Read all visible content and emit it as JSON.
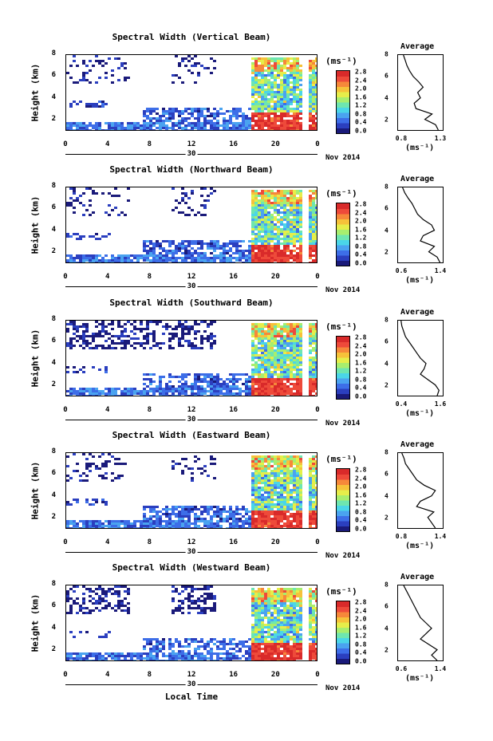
{
  "shared": {
    "height_label": "Height (km)",
    "y_ticks": [
      "2",
      "4",
      "6",
      "8"
    ],
    "x_ticks": [
      "0",
      "4",
      "8",
      "12",
      "16",
      "20",
      "0"
    ],
    "day_label": "30",
    "month_label": "Nov 2014",
    "colorbar_unit": "(ms⁻¹)",
    "colorbar_ticks": [
      "2.8",
      "2.4",
      "2.0",
      "1.6",
      "1.2",
      "0.8",
      "0.4",
      "0.0"
    ],
    "avg_title": "Average",
    "avg_unit": "(ms⁻¹)",
    "avg_y_ticks": [
      "2",
      "4",
      "6",
      "8"
    ],
    "x_axis_label": "Local Time",
    "colormap": [
      "#1a1a7a",
      "#2b3fbf",
      "#3d6ee8",
      "#4aa3f0",
      "#4ad6e8",
      "#6ee6b0",
      "#a8ee6e",
      "#e6ee4a",
      "#f6c23a",
      "#f6883a",
      "#ee4a3a",
      "#d92a2a"
    ]
  },
  "chart_data": [
    {
      "type": "heatmap",
      "title": "Spectral Width (Vertical Beam)",
      "xlabel": "Local Time",
      "ylabel": "Height (km)",
      "xlim": [
        0,
        24
      ],
      "ylim": [
        1,
        8
      ],
      "zlim": [
        0.0,
        2.8
      ],
      "colorbar_ticks": [
        2.8,
        2.4,
        2.0,
        1.6,
        1.2,
        0.8,
        0.4,
        0.0
      ],
      "average_profile": {
        "title": "Average",
        "xlim": [
          0.8,
          1.3
        ],
        "x_ticks": [
          "0.8",
          "1.3"
        ],
        "heights": [
          1.0,
          1.5,
          2.0,
          2.5,
          3.0,
          3.5,
          4.0,
          4.5,
          5.0,
          5.5,
          6.0,
          6.5,
          7.0,
          7.5,
          8.0
        ],
        "values": [
          1.25,
          1.22,
          1.1,
          1.18,
          1.0,
          0.98,
          1.05,
          1.02,
          1.08,
          1.03,
          0.97,
          0.93,
          0.9,
          0.88,
          0.86
        ]
      }
    },
    {
      "type": "heatmap",
      "title": "Spectral Width (Northward Beam)",
      "xlabel": "Local Time",
      "ylabel": "Height (km)",
      "xlim": [
        0,
        24
      ],
      "ylim": [
        1,
        8
      ],
      "zlim": [
        0.0,
        2.8
      ],
      "colorbar_ticks": [
        2.8,
        2.4,
        2.0,
        1.6,
        1.2,
        0.8,
        0.4,
        0.0
      ],
      "average_profile": {
        "title": "Average",
        "xlim": [
          0.6,
          1.4
        ],
        "x_ticks": [
          "0.6",
          "1.4"
        ],
        "heights": [
          1.0,
          1.5,
          2.0,
          2.5,
          3.0,
          3.5,
          4.0,
          4.5,
          5.0,
          5.5,
          6.0,
          6.5,
          7.0,
          7.5,
          8.0
        ],
        "values": [
          1.35,
          1.3,
          1.15,
          1.25,
          1.0,
          1.05,
          1.25,
          1.2,
          1.05,
          0.95,
          0.9,
          0.85,
          0.78,
          0.72,
          0.68
        ]
      }
    },
    {
      "type": "heatmap",
      "title": "Spectral Width (Southward Beam)",
      "xlabel": "Local Time",
      "ylabel": "Height (km)",
      "xlim": [
        0,
        24
      ],
      "ylim": [
        1,
        8
      ],
      "zlim": [
        0.0,
        2.8
      ],
      "colorbar_ticks": [
        2.8,
        2.4,
        2.0,
        1.6,
        1.2,
        0.8,
        0.4,
        0.0
      ],
      "average_profile": {
        "title": "Average",
        "xlim": [
          0.4,
          1.6
        ],
        "x_ticks": [
          "0.4",
          "1.6"
        ],
        "heights": [
          1.0,
          1.5,
          2.0,
          2.5,
          3.0,
          3.5,
          4.0,
          4.5,
          5.0,
          5.5,
          6.0,
          6.5,
          7.0,
          7.5,
          8.0
        ],
        "values": [
          1.45,
          1.5,
          1.4,
          1.2,
          1.0,
          1.1,
          1.15,
          1.0,
          0.9,
          0.8,
          0.7,
          0.6,
          0.55,
          0.5,
          0.48
        ]
      }
    },
    {
      "type": "heatmap",
      "title": "Spectral Width (Eastward Beam)",
      "xlabel": "Local Time",
      "ylabel": "Height (km)",
      "xlim": [
        0,
        24
      ],
      "ylim": [
        1,
        8
      ],
      "zlim": [
        0.0,
        2.8
      ],
      "colorbar_ticks": [
        2.8,
        2.4,
        2.0,
        1.6,
        1.2,
        0.8,
        0.4,
        0.0
      ],
      "average_profile": {
        "title": "Average",
        "xlim": [
          0.8,
          1.4
        ],
        "x_ticks": [
          "0.8",
          "1.4"
        ],
        "heights": [
          1.0,
          1.5,
          2.0,
          2.5,
          3.0,
          3.5,
          4.0,
          4.5,
          5.0,
          5.5,
          6.0,
          6.5,
          7.0,
          7.5,
          8.0
        ],
        "values": [
          1.3,
          1.25,
          1.2,
          1.28,
          1.05,
          1.1,
          1.25,
          1.3,
          1.15,
          1.05,
          1.0,
          0.95,
          0.9,
          0.88,
          0.85
        ]
      }
    },
    {
      "type": "heatmap",
      "title": "Spectral Width (Westward Beam)",
      "xlabel": "Local Time",
      "ylabel": "Height (km)",
      "xlim": [
        0,
        24
      ],
      "ylim": [
        1,
        8
      ],
      "zlim": [
        0.0,
        2.8
      ],
      "colorbar_ticks": [
        2.8,
        2.4,
        2.0,
        1.6,
        1.2,
        0.8,
        0.4,
        0.0
      ],
      "average_profile": {
        "title": "Average",
        "xlim": [
          0.6,
          1.4
        ],
        "x_ticks": [
          "0.6",
          "1.4"
        ],
        "heights": [
          1.0,
          1.5,
          2.0,
          2.5,
          3.0,
          3.5,
          4.0,
          4.5,
          5.0,
          5.5,
          6.0,
          6.5,
          7.0,
          7.5,
          8.0
        ],
        "values": [
          1.3,
          1.2,
          1.3,
          1.15,
          1.0,
          1.1,
          1.2,
          1.1,
          1.0,
          0.95,
          0.9,
          0.85,
          0.8,
          0.75,
          0.7
        ]
      }
    }
  ]
}
